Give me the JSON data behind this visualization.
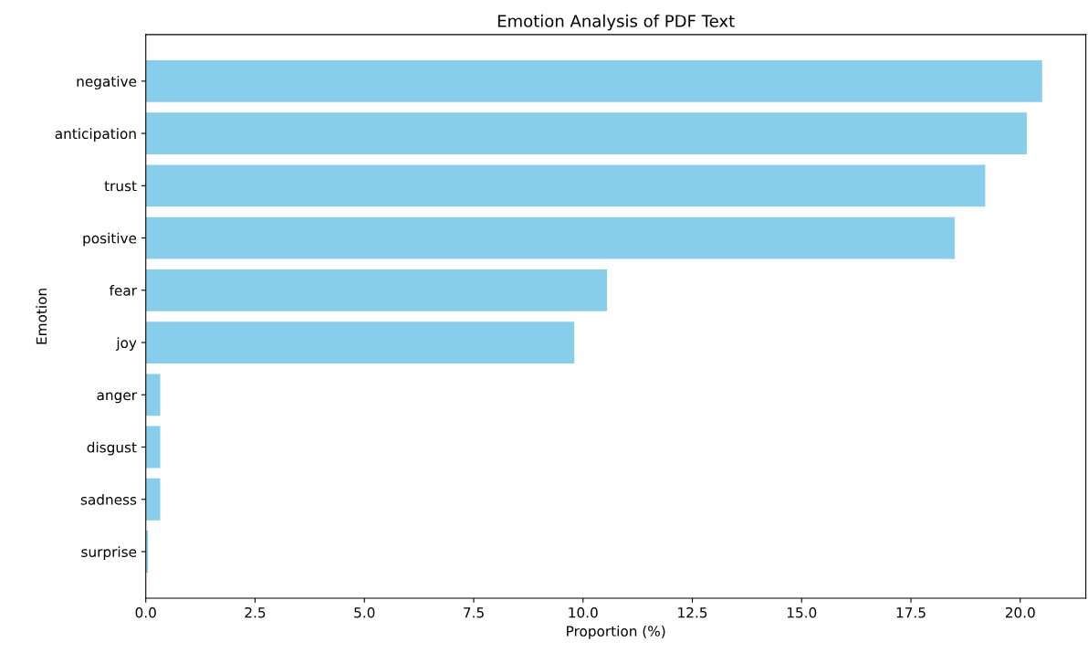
{
  "chart_data": {
    "type": "bar",
    "orientation": "horizontal",
    "title": "Emotion Analysis of PDF Text",
    "xlabel": "Proportion (%)",
    "ylabel": "Emotion",
    "categories": [
      "negative",
      "anticipation",
      "trust",
      "positive",
      "fear",
      "joy",
      "anger",
      "disgust",
      "sadness",
      "surprise"
    ],
    "values": [
      20.5,
      20.15,
      19.2,
      18.5,
      10.55,
      9.8,
      0.33,
      0.33,
      0.33,
      0.05
    ],
    "color": "#87ceeb",
    "xlim": [
      0,
      21.5
    ],
    "xticks": [
      {
        "value": 0,
        "label": "0.0"
      },
      {
        "value": 2.5,
        "label": "2.5"
      },
      {
        "value": 5,
        "label": "5.0"
      },
      {
        "value": 7.5,
        "label": "7.5"
      },
      {
        "value": 10,
        "label": "10.0"
      },
      {
        "value": 12.5,
        "label": "12.5"
      },
      {
        "value": 15,
        "label": "15.0"
      },
      {
        "value": 17.5,
        "label": "17.5"
      },
      {
        "value": 20,
        "label": "20.0"
      }
    ],
    "grid": false
  }
}
